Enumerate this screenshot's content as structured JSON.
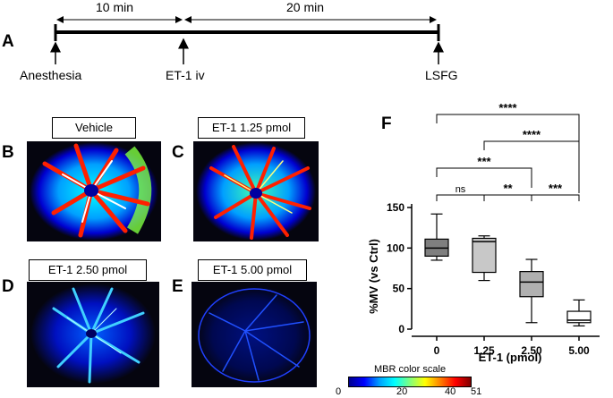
{
  "panels": {
    "A": "A",
    "B": "B",
    "C": "C",
    "D": "D",
    "E": "E",
    "F": "F"
  },
  "timeline": {
    "interval1": "10 min",
    "interval2": "20 min",
    "event1": "Anesthesia",
    "event2": "ET-1 iv",
    "event3": "LSFG"
  },
  "images": {
    "b_label": "Vehicle",
    "c_label": "ET-1 1.25 pmol",
    "d_label": "ET-1  2.50 pmol",
    "e_label": "ET-1  5.00 pmol"
  },
  "colorbar": {
    "title": "MBR color scale",
    "ticks": [
      "0",
      "20",
      "40",
      "51"
    ],
    "colors": [
      "#00008f",
      "#0000ff",
      "#00a0ff",
      "#00ffff",
      "#7fff7f",
      "#ffff00",
      "#ff8000",
      "#ff0000",
      "#800000"
    ]
  },
  "chart_data": {
    "type": "box",
    "ylabel": "%MV (vs Ctrl)",
    "xlabel": "ET-1 (pmol)",
    "categories": [
      "0",
      "1.25",
      "2.50",
      "5.00"
    ],
    "ylim": [
      0,
      150
    ],
    "yticks": [
      "0",
      "50",
      "100",
      "150"
    ],
    "boxes": [
      {
        "min": 85,
        "q1": 90,
        "median": 100,
        "q3": 111,
        "max": 142,
        "fill": "#7f7f7f"
      },
      {
        "min": 60,
        "q1": 70,
        "median": 108,
        "q3": 112,
        "max": 115,
        "fill": "#c8c8c8"
      },
      {
        "min": 8,
        "q1": 40,
        "median": 58,
        "q3": 71,
        "max": 86,
        "fill": "#b0b0b0"
      },
      {
        "min": 4,
        "q1": 8,
        "median": 11,
        "q3": 22,
        "max": 36,
        "fill": "#ffffff"
      }
    ],
    "significance": [
      {
        "from": 0,
        "to": 1,
        "label": "ns"
      },
      {
        "from": 1,
        "to": 2,
        "label": "**"
      },
      {
        "from": 2,
        "to": 3,
        "label": "***"
      },
      {
        "from": 0,
        "to": 2,
        "label": "***"
      },
      {
        "from": 1,
        "to": 3,
        "label": "****"
      },
      {
        "from": 0,
        "to": 3,
        "label": "****"
      }
    ]
  }
}
